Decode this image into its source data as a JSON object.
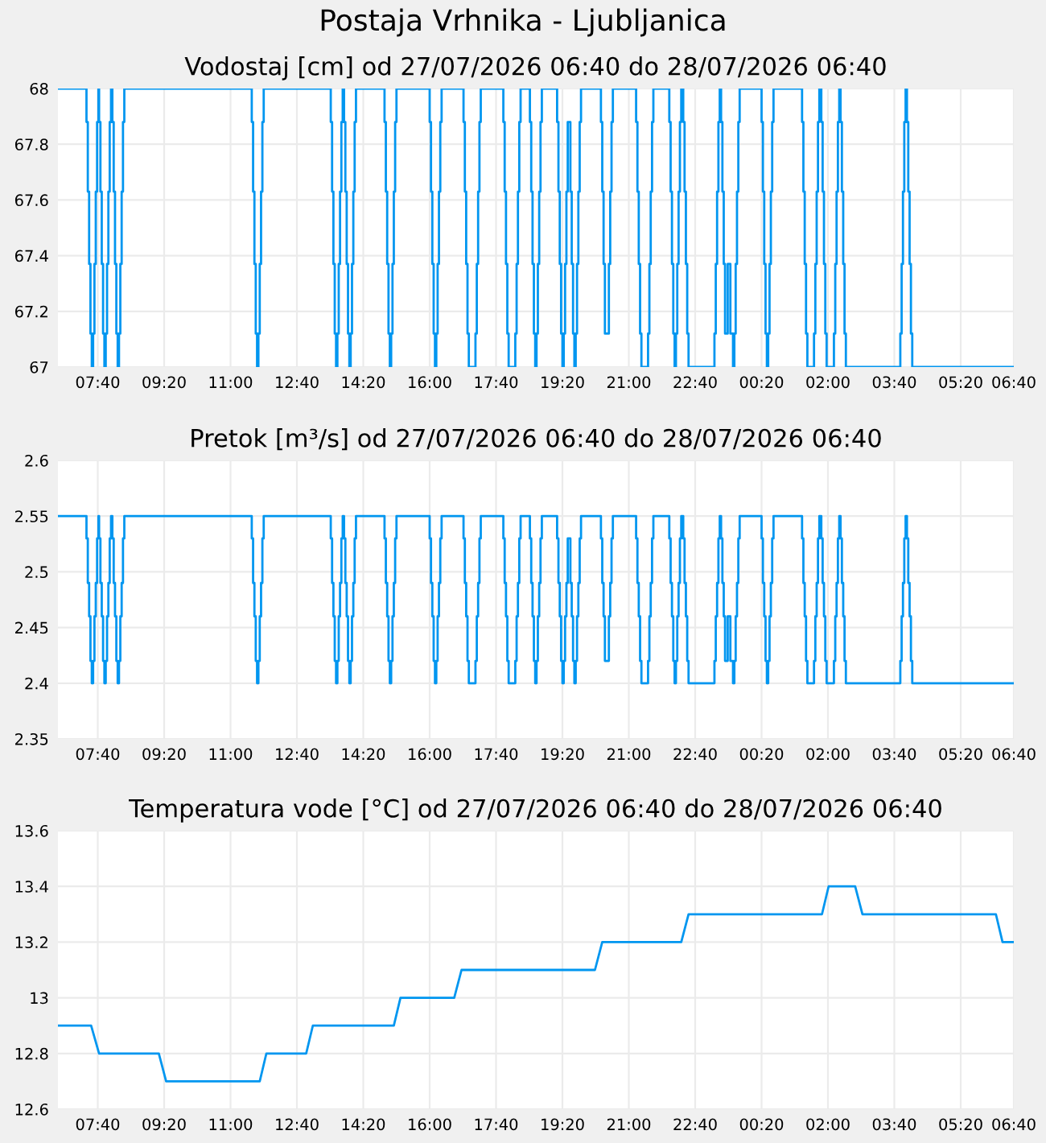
{
  "chart_data": [
    {
      "type": "step",
      "title": "Vodostaj [cm] od 27/07/2026 06:40 do 28/07/2026 06:40",
      "annotations": [
        "Postaja Vrhnika - Ljubljanica"
      ],
      "xlim": [
        "2026-07-27T06:40",
        "2026-07-28T06:40"
      ],
      "xticks": [
        {
          "value": "2026-07-27T07:40",
          "label": "07:40"
        },
        {
          "value": "2026-07-27T09:20",
          "label": "09:20"
        },
        {
          "value": "2026-07-27T11:00",
          "label": "11:00"
        },
        {
          "value": "2026-07-27T12:40",
          "label": "12:40"
        },
        {
          "value": "2026-07-27T14:20",
          "label": "14:20"
        },
        {
          "value": "2026-07-27T16:00",
          "label": "16:00"
        },
        {
          "value": "2026-07-27T17:40",
          "label": "17:40"
        },
        {
          "value": "2026-07-27T19:20",
          "label": "19:20"
        },
        {
          "value": "2026-07-27T21:00",
          "label": "21:00"
        },
        {
          "value": "2026-07-27T22:40",
          "label": "22:40"
        },
        {
          "value": "2026-07-28T00:20",
          "label": "00:20"
        },
        {
          "value": "2026-07-28T02:00",
          "label": "02:00"
        },
        {
          "value": "2026-07-28T03:40",
          "label": "03:40"
        },
        {
          "value": "2026-07-28T05:20",
          "label": "05:20"
        },
        {
          "value": "2026-07-28T06:40",
          "label": "06:40"
        }
      ],
      "ylim": [
        67,
        68
      ],
      "yticks": [
        67,
        67.2,
        67.4,
        67.6,
        67.8,
        68
      ],
      "grid": true,
      "marker": "none",
      "line_style": "solid",
      "series": [
        {
          "color": "#0096f0",
          "x": [
            "2026-07-27T06:40",
            "2026-07-27T07:23",
            "2026-07-27T07:25",
            "2026-07-27T07:27",
            "2026-07-27T07:29",
            "2026-07-27T07:31",
            "2026-07-27T07:33",
            "2026-07-27T07:35",
            "2026-07-27T07:37",
            "2026-07-27T07:39",
            "2026-07-27T07:41",
            "2026-07-27T07:42",
            "2026-07-27T07:44",
            "2026-07-27T07:46",
            "2026-07-27T07:48",
            "2026-07-27T07:50",
            "2026-07-27T07:52",
            "2026-07-27T07:54",
            "2026-07-27T07:56",
            "2026-07-27T07:58",
            "2026-07-27T08:00",
            "2026-07-27T08:02",
            "2026-07-27T08:04",
            "2026-07-27T08:06",
            "2026-07-27T08:08",
            "2026-07-27T08:10",
            "2026-07-27T08:12",
            "2026-07-27T08:14",
            "2026-07-27T08:16",
            "2026-07-27T08:18",
            "2026-07-27T08:20",
            "2026-07-27T11:32",
            "2026-07-27T11:34",
            "2026-07-27T11:36",
            "2026-07-27T11:38",
            "2026-07-27T11:40",
            "2026-07-27T11:42",
            "2026-07-27T11:44",
            "2026-07-27T11:46",
            "2026-07-27T11:48",
            "2026-07-27T11:50",
            "2026-07-27T13:31",
            "2026-07-27T13:33",
            "2026-07-27T13:35",
            "2026-07-27T13:37",
            "2026-07-27T13:39",
            "2026-07-27T13:41",
            "2026-07-27T13:43",
            "2026-07-27T13:45",
            "2026-07-27T13:47",
            "2026-07-27T13:49",
            "2026-07-27T13:51",
            "2026-07-27T13:53",
            "2026-07-27T13:55",
            "2026-07-27T13:57",
            "2026-07-27T13:59",
            "2026-07-27T14:01",
            "2026-07-27T14:03",
            "2026-07-27T14:05",
            "2026-07-27T14:07",
            "2026-07-27T14:09",
            "2026-07-27T14:52",
            "2026-07-27T14:54",
            "2026-07-27T14:56",
            "2026-07-27T14:58",
            "2026-07-27T15:00",
            "2026-07-27T15:02",
            "2026-07-27T15:04",
            "2026-07-27T15:06",
            "2026-07-27T15:08",
            "2026-07-27T15:10",
            "2026-07-27T16:00",
            "2026-07-27T16:02",
            "2026-07-27T16:04",
            "2026-07-27T16:06",
            "2026-07-27T16:08",
            "2026-07-27T16:10",
            "2026-07-27T16:12",
            "2026-07-27T16:14",
            "2026-07-27T16:16",
            "2026-07-27T16:18",
            "2026-07-27T16:51",
            "2026-07-27T16:53",
            "2026-07-27T16:55",
            "2026-07-27T16:57",
            "2026-07-27T16:59",
            "2026-07-27T17:09",
            "2026-07-27T17:11",
            "2026-07-27T17:13",
            "2026-07-27T17:15",
            "2026-07-27T17:17",
            "2026-07-27T17:51",
            "2026-07-27T17:53",
            "2026-07-27T17:55",
            "2026-07-27T17:57",
            "2026-07-27T17:59",
            "2026-07-27T18:09",
            "2026-07-27T18:11",
            "2026-07-27T18:13",
            "2026-07-27T18:15",
            "2026-07-27T18:17",
            "2026-07-27T18:31",
            "2026-07-27T18:33",
            "2026-07-27T18:35",
            "2026-07-27T18:37",
            "2026-07-27T18:39",
            "2026-07-27T18:41",
            "2026-07-27T18:43",
            "2026-07-27T18:45",
            "2026-07-27T18:47",
            "2026-07-27T18:49",
            "2026-07-27T19:12",
            "2026-07-27T19:14",
            "2026-07-27T19:16",
            "2026-07-27T19:18",
            "2026-07-27T19:20",
            "2026-07-27T19:22",
            "2026-07-27T19:24",
            "2026-07-27T19:26",
            "2026-07-27T19:28",
            "2026-07-27T19:30",
            "2026-07-27T19:32",
            "2026-07-27T19:34",
            "2026-07-27T19:36",
            "2026-07-27T19:38",
            "2026-07-27T19:40",
            "2026-07-27T19:42",
            "2026-07-27T19:44",
            "2026-07-27T19:46",
            "2026-07-27T19:48",
            "2026-07-27T20:18",
            "2026-07-27T20:20",
            "2026-07-27T20:22",
            "2026-07-27T20:24",
            "2026-07-27T20:30",
            "2026-07-27T20:32",
            "2026-07-27T20:34",
            "2026-07-27T20:36",
            "2026-07-27T21:11",
            "2026-07-27T21:13",
            "2026-07-27T21:15",
            "2026-07-27T21:17",
            "2026-07-27T21:19",
            "2026-07-27T21:29",
            "2026-07-27T21:31",
            "2026-07-27T21:33",
            "2026-07-27T21:35",
            "2026-07-27T21:37",
            "2026-07-27T22:01",
            "2026-07-27T22:03",
            "2026-07-27T22:05",
            "2026-07-27T22:07",
            "2026-07-27T22:09",
            "2026-07-27T22:11",
            "2026-07-27T22:13",
            "2026-07-27T22:15",
            "2026-07-27T22:17",
            "2026-07-27T22:19",
            "2026-07-27T22:22",
            "2026-07-27T22:24",
            "2026-07-27T22:26",
            "2026-07-27T22:28",
            "2026-07-27T22:30",
            "2026-07-27T23:09",
            "2026-07-27T23:11",
            "2026-07-27T23:13",
            "2026-07-27T23:15",
            "2026-07-27T23:17",
            "2026-07-27T23:19",
            "2026-07-27T23:21",
            "2026-07-27T23:23",
            "2026-07-27T23:25",
            "2026-07-27T23:29",
            "2026-07-27T23:33",
            "2026-07-27T23:37",
            "2026-07-27T23:39",
            "2026-07-27T23:41",
            "2026-07-27T23:43",
            "2026-07-27T23:45",
            "2026-07-27T23:47",
            "2026-07-28T00:20",
            "2026-07-28T00:22",
            "2026-07-28T00:24",
            "2026-07-28T00:26",
            "2026-07-28T00:28",
            "2026-07-28T00:30",
            "2026-07-28T00:32",
            "2026-07-28T00:34",
            "2026-07-28T00:36",
            "2026-07-28T00:38",
            "2026-07-28T01:21",
            "2026-07-28T01:23",
            "2026-07-28T01:25",
            "2026-07-28T01:27",
            "2026-07-28T01:29",
            "2026-07-28T01:39",
            "2026-07-28T01:41",
            "2026-07-28T01:43",
            "2026-07-28T01:45",
            "2026-07-28T01:47",
            "2026-07-28T01:50",
            "2026-07-28T01:52",
            "2026-07-28T01:54",
            "2026-07-28T01:56",
            "2026-07-28T01:58",
            "2026-07-28T02:09",
            "2026-07-28T02:11",
            "2026-07-28T02:13",
            "2026-07-28T02:15",
            "2026-07-28T02:17",
            "2026-07-28T02:19",
            "2026-07-28T02:21",
            "2026-07-28T02:23",
            "2026-07-28T02:25",
            "2026-07-28T02:27",
            "2026-07-28T03:49",
            "2026-07-28T03:51",
            "2026-07-28T03:53",
            "2026-07-28T03:55",
            "2026-07-28T03:57",
            "2026-07-28T03:59",
            "2026-07-28T04:01",
            "2026-07-28T04:03",
            "2026-07-28T04:05",
            "2026-07-28T04:07",
            "2026-07-28T06:40"
          ],
          "values": [
            68,
            67.88,
            67.63,
            67.37,
            67.12,
            67,
            67.12,
            67.37,
            67.63,
            67.88,
            68,
            67.88,
            67.63,
            67.37,
            67.12,
            67,
            67.12,
            67.37,
            67.63,
            67.88,
            68,
            67.88,
            67.63,
            67.37,
            67.12,
            67,
            67.12,
            67.37,
            67.63,
            67.88,
            68,
            67.88,
            67.63,
            67.37,
            67.12,
            67,
            67.12,
            67.37,
            67.63,
            67.88,
            68,
            67.88,
            67.63,
            67.37,
            67.12,
            67,
            67.12,
            67.37,
            67.63,
            67.88,
            68,
            67.88,
            67.63,
            67.37,
            67.12,
            67,
            67.12,
            67.37,
            67.63,
            67.88,
            68,
            67.88,
            67.63,
            67.37,
            67.12,
            67,
            67.12,
            67.37,
            67.63,
            67.88,
            68,
            67.88,
            67.63,
            67.37,
            67.12,
            67,
            67.12,
            67.37,
            67.63,
            67.88,
            68,
            67.88,
            67.63,
            67.37,
            67.12,
            67,
            67.12,
            67.37,
            67.63,
            67.88,
            68,
            67.88,
            67.63,
            67.37,
            67.12,
            67,
            67.12,
            67.37,
            67.63,
            67.88,
            68,
            67.88,
            67.63,
            67.37,
            67.12,
            67,
            67.12,
            67.37,
            67.63,
            67.88,
            68,
            67.88,
            67.63,
            67.37,
            67.12,
            67,
            67.12,
            67.37,
            67.63,
            67.88,
            67.88,
            67.63,
            67.37,
            67.12,
            67,
            67.12,
            67.37,
            67.63,
            67.88,
            68,
            67.88,
            67.63,
            67.37,
            67.12,
            67.37,
            67.63,
            67.88,
            68,
            67.88,
            67.63,
            67.37,
            67.12,
            67,
            67.12,
            67.37,
            67.63,
            67.88,
            68,
            67.88,
            67.63,
            67.37,
            67.12,
            67,
            67.12,
            67.37,
            67.63,
            67.88,
            68,
            67.88,
            67.63,
            67.37,
            67.12,
            67,
            67.12,
            67.37,
            67.63,
            67.88,
            68,
            67.88,
            67.63,
            67.37,
            67.12,
            67.37,
            67.12,
            67,
            67.12,
            67.37,
            67.63,
            67.88,
            68,
            67.88,
            67.63,
            67.37,
            67.12,
            67,
            67.12,
            67.37,
            67.63,
            67.88,
            68,
            67.88,
            67.63,
            67.37,
            67.12,
            67,
            67.12,
            67.37,
            67.63,
            67.88,
            68,
            67.88,
            67.63,
            67.37,
            67.12,
            67,
            67.12,
            67.37,
            67.63,
            67.88,
            68,
            67.88,
            67.63,
            67.37,
            67.12,
            67,
            67.12,
            67.37,
            67.63,
            67.88,
            68,
            67.88,
            67.63,
            67.37,
            67.12,
            67,
            67
          ]
        }
      ]
    },
    {
      "type": "step",
      "title": "Pretok [m³/s] od 27/07/2026 06:40 do 28/07/2026 06:40",
      "xlim": [
        "2026-07-27T06:40",
        "2026-07-28T06:40"
      ],
      "xticks": [
        {
          "value": "2026-07-27T07:40",
          "label": "07:40"
        },
        {
          "value": "2026-07-27T09:20",
          "label": "09:20"
        },
        {
          "value": "2026-07-27T11:00",
          "label": "11:00"
        },
        {
          "value": "2026-07-27T12:40",
          "label": "12:40"
        },
        {
          "value": "2026-07-27T14:20",
          "label": "14:20"
        },
        {
          "value": "2026-07-27T16:00",
          "label": "16:00"
        },
        {
          "value": "2026-07-27T17:40",
          "label": "17:40"
        },
        {
          "value": "2026-07-27T19:20",
          "label": "19:20"
        },
        {
          "value": "2026-07-27T21:00",
          "label": "21:00"
        },
        {
          "value": "2026-07-27T22:40",
          "label": "22:40"
        },
        {
          "value": "2026-07-28T00:20",
          "label": "00:20"
        },
        {
          "value": "2026-07-28T02:00",
          "label": "02:00"
        },
        {
          "value": "2026-07-28T03:40",
          "label": "03:40"
        },
        {
          "value": "2026-07-28T05:20",
          "label": "05:20"
        },
        {
          "value": "2026-07-28T06:40",
          "label": "06:40"
        }
      ],
      "ylim": [
        2.35,
        2.6
      ],
      "yticks": [
        2.35,
        2.4,
        2.45,
        2.5,
        2.55,
        2.6
      ],
      "grid": true,
      "marker": "none",
      "line_style": "solid",
      "series": [
        {
          "color": "#0096f0",
          "x": [
            "2026-07-27T06:40",
            "2026-07-27T07:23",
            "2026-07-27T07:25",
            "2026-07-27T07:27",
            "2026-07-27T07:29",
            "2026-07-27T07:31",
            "2026-07-27T07:33",
            "2026-07-27T07:35",
            "2026-07-27T07:37",
            "2026-07-27T07:39",
            "2026-07-27T07:41",
            "2026-07-27T07:42",
            "2026-07-27T07:44",
            "2026-07-27T07:46",
            "2026-07-27T07:48",
            "2026-07-27T07:50",
            "2026-07-27T07:52",
            "2026-07-27T07:54",
            "2026-07-27T07:56",
            "2026-07-27T07:58",
            "2026-07-27T08:00",
            "2026-07-27T08:02",
            "2026-07-27T08:04",
            "2026-07-27T08:06",
            "2026-07-27T08:08",
            "2026-07-27T08:10",
            "2026-07-27T08:12",
            "2026-07-27T08:14",
            "2026-07-27T08:16",
            "2026-07-27T08:18",
            "2026-07-27T08:20",
            "2026-07-27T11:32",
            "2026-07-27T11:34",
            "2026-07-27T11:36",
            "2026-07-27T11:38",
            "2026-07-27T11:40",
            "2026-07-27T11:42",
            "2026-07-27T11:44",
            "2026-07-27T11:46",
            "2026-07-27T11:48",
            "2026-07-27T11:50",
            "2026-07-27T13:31",
            "2026-07-27T13:33",
            "2026-07-27T13:35",
            "2026-07-27T13:37",
            "2026-07-27T13:39",
            "2026-07-27T13:41",
            "2026-07-27T13:43",
            "2026-07-27T13:45",
            "2026-07-27T13:47",
            "2026-07-27T13:49",
            "2026-07-27T13:51",
            "2026-07-27T13:53",
            "2026-07-27T13:55",
            "2026-07-27T13:57",
            "2026-07-27T13:59",
            "2026-07-27T14:01",
            "2026-07-27T14:03",
            "2026-07-27T14:05",
            "2026-07-27T14:07",
            "2026-07-27T14:09",
            "2026-07-27T14:52",
            "2026-07-27T14:54",
            "2026-07-27T14:56",
            "2026-07-27T14:58",
            "2026-07-27T15:00",
            "2026-07-27T15:02",
            "2026-07-27T15:04",
            "2026-07-27T15:06",
            "2026-07-27T15:08",
            "2026-07-27T15:10",
            "2026-07-27T16:00",
            "2026-07-27T16:02",
            "2026-07-27T16:04",
            "2026-07-27T16:06",
            "2026-07-27T16:08",
            "2026-07-27T16:10",
            "2026-07-27T16:12",
            "2026-07-27T16:14",
            "2026-07-27T16:16",
            "2026-07-27T16:18",
            "2026-07-27T16:51",
            "2026-07-27T16:53",
            "2026-07-27T16:55",
            "2026-07-27T16:57",
            "2026-07-27T16:59",
            "2026-07-27T17:09",
            "2026-07-27T17:11",
            "2026-07-27T17:13",
            "2026-07-27T17:15",
            "2026-07-27T17:17",
            "2026-07-27T17:51",
            "2026-07-27T17:53",
            "2026-07-27T17:55",
            "2026-07-27T17:57",
            "2026-07-27T17:59",
            "2026-07-27T18:09",
            "2026-07-27T18:11",
            "2026-07-27T18:13",
            "2026-07-27T18:15",
            "2026-07-27T18:17",
            "2026-07-27T18:31",
            "2026-07-27T18:33",
            "2026-07-27T18:35",
            "2026-07-27T18:37",
            "2026-07-27T18:39",
            "2026-07-27T18:41",
            "2026-07-27T18:43",
            "2026-07-27T18:45",
            "2026-07-27T18:47",
            "2026-07-27T18:49",
            "2026-07-27T19:12",
            "2026-07-27T19:14",
            "2026-07-27T19:16",
            "2026-07-27T19:18",
            "2026-07-27T19:20",
            "2026-07-27T19:22",
            "2026-07-27T19:24",
            "2026-07-27T19:26",
            "2026-07-27T19:28",
            "2026-07-27T19:30",
            "2026-07-27T19:32",
            "2026-07-27T19:34",
            "2026-07-27T19:36",
            "2026-07-27T19:38",
            "2026-07-27T19:40",
            "2026-07-27T19:42",
            "2026-07-27T19:44",
            "2026-07-27T19:46",
            "2026-07-27T19:48",
            "2026-07-27T20:18",
            "2026-07-27T20:20",
            "2026-07-27T20:22",
            "2026-07-27T20:24",
            "2026-07-27T20:30",
            "2026-07-27T20:32",
            "2026-07-27T20:34",
            "2026-07-27T20:36",
            "2026-07-27T21:11",
            "2026-07-27T21:13",
            "2026-07-27T21:15",
            "2026-07-27T21:17",
            "2026-07-27T21:19",
            "2026-07-27T21:29",
            "2026-07-27T21:31",
            "2026-07-27T21:33",
            "2026-07-27T21:35",
            "2026-07-27T21:37",
            "2026-07-27T22:01",
            "2026-07-27T22:03",
            "2026-07-27T22:05",
            "2026-07-27T22:07",
            "2026-07-27T22:09",
            "2026-07-27T22:11",
            "2026-07-27T22:13",
            "2026-07-27T22:15",
            "2026-07-27T22:17",
            "2026-07-27T22:19",
            "2026-07-27T22:22",
            "2026-07-27T22:24",
            "2026-07-27T22:26",
            "2026-07-27T22:28",
            "2026-07-27T22:30",
            "2026-07-27T23:09",
            "2026-07-27T23:11",
            "2026-07-27T23:13",
            "2026-07-27T23:15",
            "2026-07-27T23:17",
            "2026-07-27T23:19",
            "2026-07-27T23:21",
            "2026-07-27T23:23",
            "2026-07-27T23:25",
            "2026-07-27T23:29",
            "2026-07-27T23:33",
            "2026-07-27T23:37",
            "2026-07-27T23:39",
            "2026-07-27T23:41",
            "2026-07-27T23:43",
            "2026-07-27T23:45",
            "2026-07-27T23:47",
            "2026-07-28T00:20",
            "2026-07-28T00:22",
            "2026-07-28T00:24",
            "2026-07-28T00:26",
            "2026-07-28T00:28",
            "2026-07-28T00:30",
            "2026-07-28T00:32",
            "2026-07-28T00:34",
            "2026-07-28T00:36",
            "2026-07-28T00:38",
            "2026-07-28T01:21",
            "2026-07-28T01:23",
            "2026-07-28T01:25",
            "2026-07-28T01:27",
            "2026-07-28T01:29",
            "2026-07-28T01:39",
            "2026-07-28T01:41",
            "2026-07-28T01:43",
            "2026-07-28T01:45",
            "2026-07-28T01:47",
            "2026-07-28T01:50",
            "2026-07-28T01:52",
            "2026-07-28T01:54",
            "2026-07-28T01:56",
            "2026-07-28T01:58",
            "2026-07-28T02:09",
            "2026-07-28T02:11",
            "2026-07-28T02:13",
            "2026-07-28T02:15",
            "2026-07-28T02:17",
            "2026-07-28T02:19",
            "2026-07-28T02:21",
            "2026-07-28T02:23",
            "2026-07-28T02:25",
            "2026-07-28T02:27",
            "2026-07-28T03:49",
            "2026-07-28T03:51",
            "2026-07-28T03:53",
            "2026-07-28T03:55",
            "2026-07-28T03:57",
            "2026-07-28T03:59",
            "2026-07-28T04:01",
            "2026-07-28T04:03",
            "2026-07-28T04:05",
            "2026-07-28T04:07",
            "2026-07-28T06:40"
          ],
          "values": [
            2.55,
            2.53,
            2.49,
            2.46,
            2.42,
            2.4,
            2.42,
            2.46,
            2.49,
            2.53,
            2.55,
            2.53,
            2.49,
            2.46,
            2.42,
            2.4,
            2.42,
            2.46,
            2.49,
            2.53,
            2.55,
            2.53,
            2.49,
            2.46,
            2.42,
            2.4,
            2.42,
            2.46,
            2.49,
            2.53,
            2.55,
            2.53,
            2.49,
            2.46,
            2.42,
            2.4,
            2.42,
            2.46,
            2.49,
            2.53,
            2.55,
            2.53,
            2.49,
            2.46,
            2.42,
            2.4,
            2.42,
            2.46,
            2.49,
            2.53,
            2.55,
            2.53,
            2.49,
            2.46,
            2.42,
            2.4,
            2.42,
            2.46,
            2.49,
            2.53,
            2.55,
            2.53,
            2.49,
            2.46,
            2.42,
            2.4,
            2.42,
            2.46,
            2.49,
            2.53,
            2.55,
            2.53,
            2.49,
            2.46,
            2.42,
            2.4,
            2.42,
            2.46,
            2.49,
            2.53,
            2.55,
            2.53,
            2.49,
            2.46,
            2.42,
            2.4,
            2.42,
            2.46,
            2.49,
            2.53,
            2.55,
            2.53,
            2.49,
            2.46,
            2.42,
            2.4,
            2.42,
            2.46,
            2.49,
            2.53,
            2.55,
            2.53,
            2.49,
            2.46,
            2.42,
            2.4,
            2.42,
            2.46,
            2.49,
            2.53,
            2.55,
            2.53,
            2.49,
            2.46,
            2.42,
            2.4,
            2.42,
            2.46,
            2.49,
            2.53,
            2.53,
            2.49,
            2.46,
            2.42,
            2.4,
            2.42,
            2.46,
            2.49,
            2.53,
            2.55,
            2.53,
            2.49,
            2.46,
            2.42,
            2.46,
            2.49,
            2.53,
            2.55,
            2.53,
            2.49,
            2.46,
            2.42,
            2.4,
            2.42,
            2.46,
            2.49,
            2.53,
            2.55,
            2.53,
            2.49,
            2.46,
            2.42,
            2.4,
            2.42,
            2.46,
            2.49,
            2.53,
            2.55,
            2.53,
            2.49,
            2.46,
            2.42,
            2.4,
            2.42,
            2.46,
            2.49,
            2.53,
            2.55,
            2.53,
            2.49,
            2.46,
            2.42,
            2.46,
            2.42,
            2.4,
            2.42,
            2.46,
            2.49,
            2.53,
            2.55,
            2.53,
            2.49,
            2.46,
            2.42,
            2.4,
            2.42,
            2.46,
            2.49,
            2.53,
            2.55,
            2.53,
            2.49,
            2.46,
            2.42,
            2.4,
            2.42,
            2.46,
            2.49,
            2.53,
            2.55,
            2.53,
            2.49,
            2.46,
            2.42,
            2.4,
            2.42,
            2.46,
            2.49,
            2.53,
            2.55,
            2.53,
            2.49,
            2.46,
            2.42,
            2.4,
            2.42,
            2.46,
            2.49,
            2.53,
            2.55,
            2.53,
            2.49,
            2.46,
            2.42,
            2.4,
            2.4
          ]
        }
      ]
    },
    {
      "type": "line",
      "title": "Temperatura vode [°C] od 27/07/2026 06:40 do 28/07/2026 06:40",
      "xlim": [
        "2026-07-27T06:40",
        "2026-07-28T06:40"
      ],
      "xticks": [
        {
          "value": "2026-07-27T07:40",
          "label": "07:40"
        },
        {
          "value": "2026-07-27T09:20",
          "label": "09:20"
        },
        {
          "value": "2026-07-27T11:00",
          "label": "11:00"
        },
        {
          "value": "2026-07-27T12:40",
          "label": "12:40"
        },
        {
          "value": "2026-07-27T14:20",
          "label": "14:20"
        },
        {
          "value": "2026-07-27T16:00",
          "label": "16:00"
        },
        {
          "value": "2026-07-27T17:40",
          "label": "17:40"
        },
        {
          "value": "2026-07-27T19:20",
          "label": "19:20"
        },
        {
          "value": "2026-07-27T21:00",
          "label": "21:00"
        },
        {
          "value": "2026-07-27T22:40",
          "label": "22:40"
        },
        {
          "value": "2026-07-28T00:20",
          "label": "00:20"
        },
        {
          "value": "2026-07-28T02:00",
          "label": "02:00"
        },
        {
          "value": "2026-07-28T03:40",
          "label": "03:40"
        },
        {
          "value": "2026-07-28T05:20",
          "label": "05:20"
        },
        {
          "value": "2026-07-28T06:40",
          "label": "06:40"
        }
      ],
      "ylim": [
        12.6,
        13.6
      ],
      "yticks": [
        12.6,
        12.8,
        13,
        13.2,
        13.4,
        13.6
      ],
      "grid": true,
      "marker": "none",
      "line_style": "solid",
      "series": [
        {
          "color": "#0096f0",
          "x": [
            "2026-07-27T06:40",
            "2026-07-27T07:30",
            "2026-07-27T07:42",
            "2026-07-27T09:12",
            "2026-07-27T09:23",
            "2026-07-27T11:44",
            "2026-07-27T11:54",
            "2026-07-27T12:54",
            "2026-07-27T13:04",
            "2026-07-27T15:06",
            "2026-07-27T15:16",
            "2026-07-27T16:37",
            "2026-07-27T16:48",
            "2026-07-27T20:09",
            "2026-07-27T20:20",
            "2026-07-27T22:19",
            "2026-07-27T22:30",
            "2026-07-28T01:51",
            "2026-07-28T02:01",
            "2026-07-28T02:41",
            "2026-07-28T02:52",
            "2026-07-28T06:13",
            "2026-07-28T06:23",
            "2026-07-28T06:40"
          ],
          "values": [
            12.9,
            12.9,
            12.8,
            12.8,
            12.7,
            12.7,
            12.8,
            12.8,
            12.9,
            12.9,
            13,
            13,
            13.1,
            13.1,
            13.2,
            13.2,
            13.3,
            13.3,
            13.4,
            13.4,
            13.3,
            13.3,
            13.2,
            13.2
          ]
        }
      ]
    }
  ]
}
